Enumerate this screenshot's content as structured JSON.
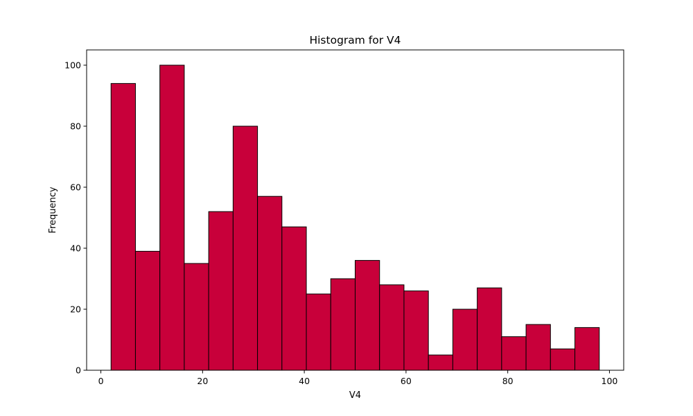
{
  "chart_data": {
    "type": "bar",
    "title": "Histogram for V4",
    "xlabel": "V4",
    "ylabel": "Frequency",
    "bin_start": 2,
    "bin_width": 4.8,
    "values": [
      94,
      39,
      100,
      35,
      52,
      80,
      57,
      47,
      25,
      30,
      36,
      28,
      26,
      5,
      20,
      27,
      11,
      15,
      7,
      14
    ],
    "xlim": [
      -2.8,
      102.8
    ],
    "ylim": [
      0,
      105
    ],
    "xticks": [
      0,
      20,
      40,
      60,
      80,
      100
    ],
    "yticks": [
      0,
      20,
      40,
      60,
      80,
      100
    ],
    "bar_color": "#c8003a",
    "edge_color": "#000000",
    "grid": false,
    "legend": "none"
  }
}
